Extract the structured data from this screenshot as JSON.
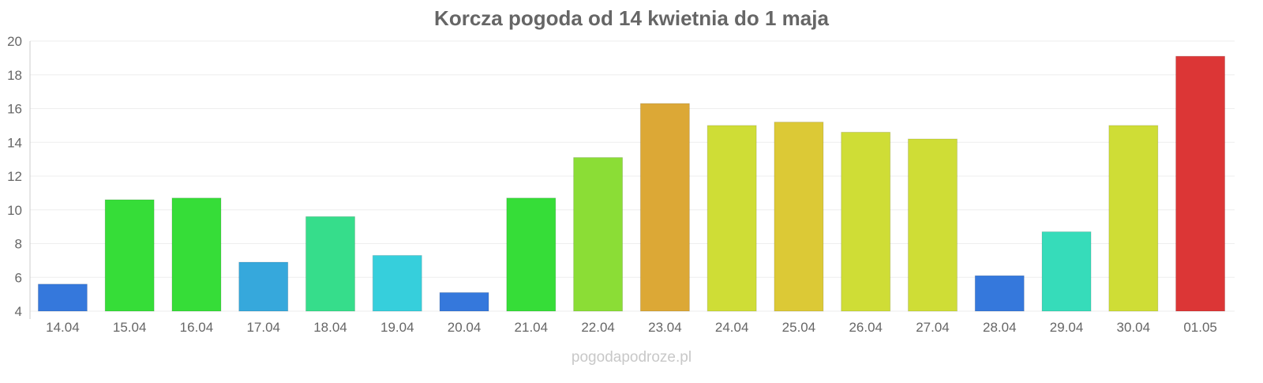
{
  "chart_data": {
    "type": "bar",
    "title": "Korcza pogoda od 14 kwietnia do 1 maja",
    "xlabel": "",
    "ylabel": "",
    "ylim": [
      4,
      20
    ],
    "yticks": [
      4,
      6,
      8,
      10,
      12,
      14,
      16,
      18,
      20
    ],
    "grid": true,
    "categories": [
      "14.04",
      "15.04",
      "16.04",
      "17.04",
      "18.04",
      "19.04",
      "20.04",
      "21.04",
      "22.04",
      "23.04",
      "24.04",
      "25.04",
      "26.04",
      "27.04",
      "28.04",
      "29.04",
      "30.04",
      "01.05"
    ],
    "values": [
      5.6,
      10.6,
      10.7,
      6.9,
      9.6,
      7.3,
      5.1,
      10.7,
      13.1,
      16.3,
      15.0,
      15.2,
      14.6,
      14.2,
      6.1,
      8.7,
      15.0,
      19.1
    ],
    "colors": [
      "#3578dc",
      "#36dd38",
      "#36dd38",
      "#36a8dc",
      "#36dd8b",
      "#36cfdc",
      "#3578dc",
      "#36dd38",
      "#8bdd36",
      "#dca836",
      "#cfdd36",
      "#dcc936",
      "#cfdd36",
      "#cfdd36",
      "#3578dc",
      "#36dcba",
      "#cfdd36",
      "#dc3636"
    ]
  },
  "watermark": "pogodapodroze.pl"
}
